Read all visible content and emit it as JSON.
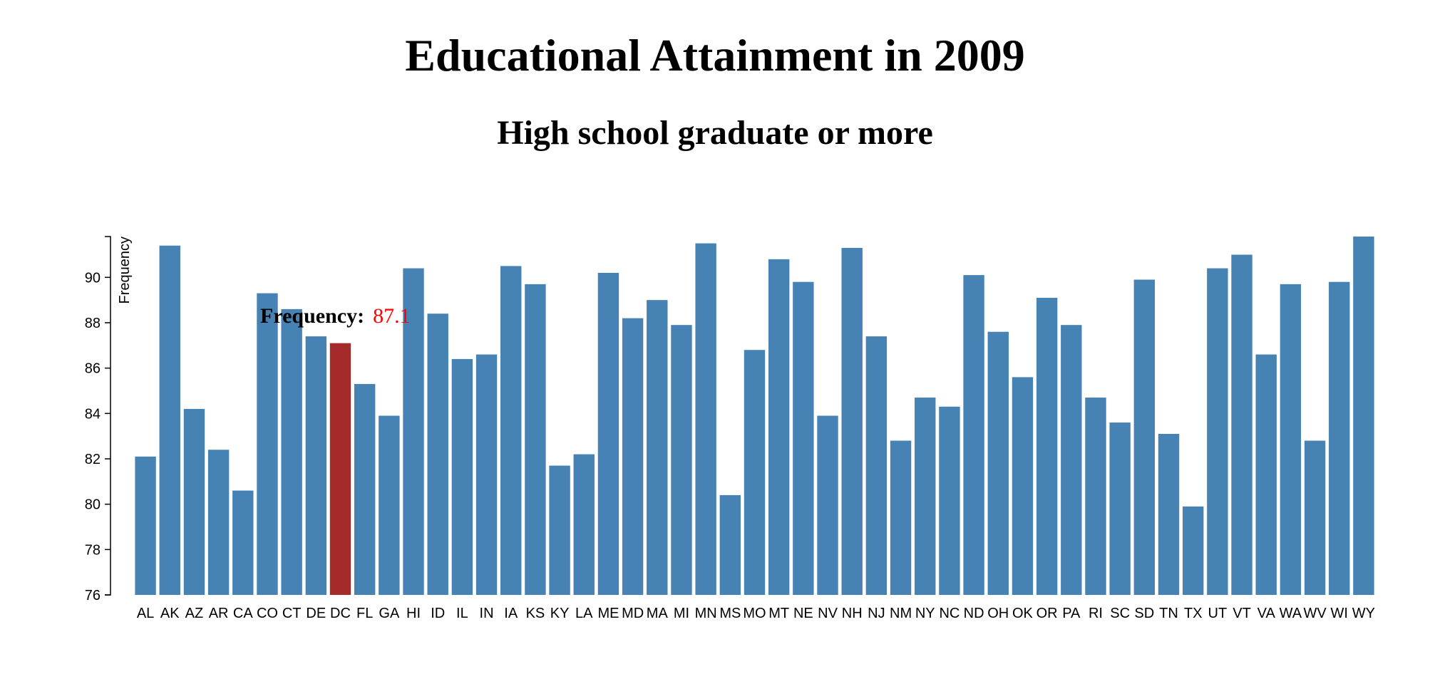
{
  "chart_data": {
    "type": "bar",
    "title": "Educational Attainment in 2009",
    "subtitle": "High school graduate or more",
    "xlabel": "",
    "ylabel": "Frequency",
    "ylim": [
      76,
      91.8
    ],
    "yticks": [
      76,
      78,
      80,
      82,
      84,
      86,
      88,
      90
    ],
    "grid": false,
    "categories": [
      "AL",
      "AK",
      "AZ",
      "AR",
      "CA",
      "CO",
      "CT",
      "DE",
      "DC",
      "FL",
      "GA",
      "HI",
      "ID",
      "IL",
      "IN",
      "IA",
      "KS",
      "KY",
      "LA",
      "ME",
      "MD",
      "MA",
      "MI",
      "MN",
      "MS",
      "MO",
      "MT",
      "NE",
      "NV",
      "NH",
      "NJ",
      "NM",
      "NY",
      "NC",
      "ND",
      "OH",
      "OK",
      "OR",
      "PA",
      "RI",
      "SC",
      "SD",
      "TN",
      "TX",
      "UT",
      "VT",
      "VA",
      "WA",
      "WV",
      "WI",
      "WY"
    ],
    "values": [
      82.1,
      91.4,
      84.2,
      82.4,
      80.6,
      89.3,
      88.6,
      87.4,
      87.1,
      85.3,
      83.9,
      90.4,
      88.4,
      86.4,
      86.6,
      90.5,
      89.7,
      81.7,
      82.2,
      90.2,
      88.2,
      89.0,
      87.9,
      91.5,
      80.4,
      86.8,
      90.8,
      89.8,
      83.9,
      91.3,
      87.4,
      82.8,
      84.7,
      84.3,
      90.1,
      87.6,
      85.6,
      89.1,
      87.9,
      84.7,
      83.6,
      89.9,
      83.1,
      79.9,
      90.4,
      91.0,
      86.6,
      89.7,
      82.8,
      89.8,
      91.8
    ],
    "bar_color": "#4682b4",
    "highlight_color": "#a52a2a",
    "highlight_category": "DC",
    "tooltip": {
      "label": "Frequency:",
      "value": "87.1",
      "value_color": "#ff0000"
    }
  }
}
